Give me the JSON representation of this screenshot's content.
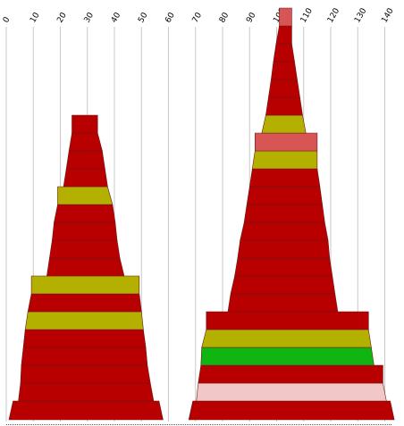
{
  "colors": {
    "red": "#b80000",
    "olive": "#b3b000",
    "salmon": "#d85555",
    "green": "#11b511",
    "pink": "#f2c7c7",
    "stroke": "#6a1a1a",
    "grid": "#c8c8c8",
    "baseline": "#555555",
    "background": "#ffffff"
  },
  "chart_data": {
    "type": "area",
    "title": "",
    "xlabel": "",
    "ylabel": "",
    "xlim": [
      0,
      140
    ],
    "x_ticks": [
      "0",
      "10",
      "20",
      "30",
      "40",
      "50",
      "60",
      "70",
      "80",
      "90",
      "100",
      "110",
      "120",
      "130",
      "140"
    ],
    "grid": true,
    "legend": "none",
    "stacks": [
      {
        "bands": [
          {
            "left": 2.5,
            "right": 56.5,
            "color": "red"
          },
          {
            "left": 4.5,
            "right": 54.5,
            "color": "red"
          },
          {
            "left": 5.3,
            "right": 53.3,
            "color": "red"
          },
          {
            "left": 5.6,
            "right": 52.2,
            "color": "red"
          },
          {
            "left": 6.3,
            "right": 51.6,
            "color": "red"
          },
          {
            "left": 7.0,
            "right": 50.7,
            "color": "olive"
          },
          {
            "left": 8.0,
            "right": 50.0,
            "color": "red"
          },
          {
            "left": 9.3,
            "right": 49.2,
            "color": "olive"
          },
          {
            "left": 15.0,
            "right": 43.6,
            "color": "red"
          },
          {
            "left": 16.0,
            "right": 42.0,
            "color": "red"
          },
          {
            "left": 17.0,
            "right": 41.0,
            "color": "red"
          },
          {
            "left": 17.7,
            "right": 40.3,
            "color": "red"
          },
          {
            "left": 19.0,
            "right": 39.3,
            "color": "olive"
          },
          {
            "left": 21.2,
            "right": 37.5,
            "color": "red"
          },
          {
            "left": 22.2,
            "right": 36.5,
            "color": "red"
          },
          {
            "left": 23.2,
            "right": 35.5,
            "color": "red"
          },
          {
            "left": 24.3,
            "right": 33.8,
            "color": "red"
          }
        ]
      },
      {
        "bands": [
          {
            "left": 69.0,
            "right": 142.0,
            "color": "red"
          },
          {
            "left": 70.3,
            "right": 140.6,
            "color": "pink"
          },
          {
            "left": 71.0,
            "right": 139.3,
            "color": "red"
          },
          {
            "left": 72.0,
            "right": 136.0,
            "color": "green"
          },
          {
            "left": 72.3,
            "right": 135.0,
            "color": "olive"
          },
          {
            "left": 74.0,
            "right": 134.0,
            "color": "red"
          },
          {
            "left": 82.0,
            "right": 122.6,
            "color": "red"
          },
          {
            "left": 83.0,
            "right": 121.6,
            "color": "red"
          },
          {
            "left": 84.5,
            "right": 120.6,
            "color": "red"
          },
          {
            "left": 85.6,
            "right": 119.6,
            "color": "red"
          },
          {
            "left": 86.5,
            "right": 119.0,
            "color": "red"
          },
          {
            "left": 88.0,
            "right": 117.8,
            "color": "red"
          },
          {
            "left": 89.0,
            "right": 116.9,
            "color": "red"
          },
          {
            "left": 90.0,
            "right": 116.0,
            "color": "red"
          },
          {
            "left": 91.0,
            "right": 115.0,
            "color": "olive"
          },
          {
            "left": 92.0,
            "right": 115.0,
            "color": "salmon"
          },
          {
            "left": 94.5,
            "right": 110.8,
            "color": "olive"
          },
          {
            "left": 96.0,
            "right": 109.6,
            "color": "red"
          },
          {
            "left": 97.0,
            "right": 108.6,
            "color": "red"
          },
          {
            "left": 98.0,
            "right": 107.6,
            "color": "red"
          },
          {
            "left": 98.8,
            "right": 106.6,
            "color": "red"
          },
          {
            "left": 99.8,
            "right": 105.6,
            "color": "red"
          },
          {
            "left": 101.0,
            "right": 105.6,
            "color": "salmon"
          }
        ]
      }
    ]
  }
}
